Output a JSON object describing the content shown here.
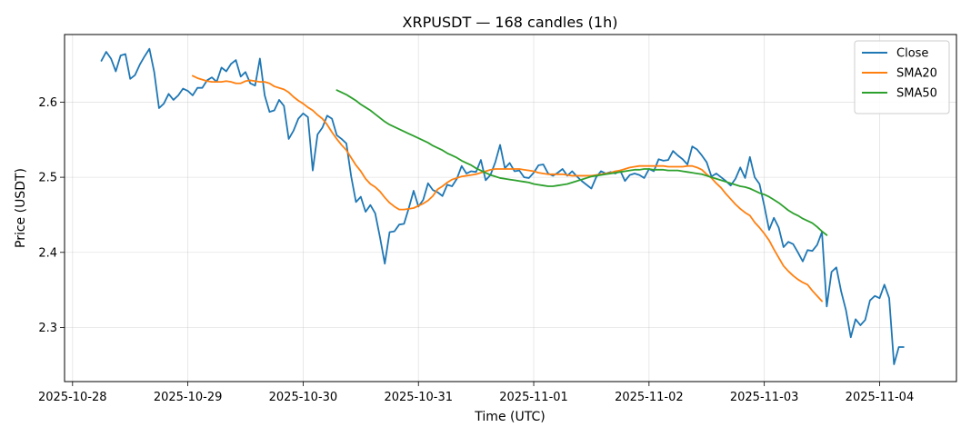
{
  "chart_data": {
    "type": "line",
    "title": "XRPUSDT — 168 candles (1h)",
    "xlabel": "Time (UTC)",
    "ylabel": "Price (USDT)",
    "x_start": "2025-10-28 06:00",
    "x_interval_hours": 1,
    "xlim": [
      "2025-10-27 22:20",
      "2025-11-04 16:00"
    ],
    "ylim": [
      2.228,
      2.69
    ],
    "x_ticks": [
      "2025-10-28",
      "2025-10-29",
      "2025-10-30",
      "2025-10-31",
      "2025-11-01",
      "2025-11-02",
      "2025-11-03",
      "2025-11-04"
    ],
    "y_ticks": [
      2.3,
      2.4,
      2.5,
      2.6
    ],
    "y_tick_labels": [
      "2.3",
      "2.4",
      "2.5",
      "2.6"
    ],
    "grid": true,
    "legend_position": "top-right",
    "series": [
      {
        "name": "Close",
        "color": "#1f77b4",
        "values": [
          2.655,
          2.667,
          2.658,
          2.641,
          2.662,
          2.664,
          2.631,
          2.636,
          2.65,
          2.661,
          2.671,
          2.64,
          2.592,
          2.598,
          2.611,
          2.603,
          2.609,
          2.618,
          2.615,
          2.609,
          2.619,
          2.619,
          2.629,
          2.633,
          2.627,
          2.646,
          2.641,
          2.651,
          2.656,
          2.634,
          2.64,
          2.625,
          2.622,
          2.658,
          2.609,
          2.587,
          2.589,
          2.603,
          2.595,
          2.551,
          2.562,
          2.578,
          2.585,
          2.58,
          2.509,
          2.557,
          2.566,
          2.582,
          2.578,
          2.556,
          2.551,
          2.545,
          2.501,
          2.467,
          2.474,
          2.454,
          2.463,
          2.452,
          2.42,
          2.385,
          2.427,
          2.428,
          2.437,
          2.438,
          2.459,
          2.482,
          2.461,
          2.47,
          2.492,
          2.483,
          2.48,
          2.475,
          2.49,
          2.488,
          2.498,
          2.515,
          2.505,
          2.508,
          2.507,
          2.523,
          2.496,
          2.503,
          2.52,
          2.543,
          2.512,
          2.519,
          2.508,
          2.509,
          2.5,
          2.499,
          2.506,
          2.516,
          2.517,
          2.505,
          2.502,
          2.506,
          2.511,
          2.502,
          2.508,
          2.501,
          2.495,
          2.49,
          2.485,
          2.5,
          2.508,
          2.505,
          2.507,
          2.505,
          2.509,
          2.495,
          2.503,
          2.505,
          2.503,
          2.499,
          2.511,
          2.508,
          2.524,
          2.522,
          2.523,
          2.535,
          2.529,
          2.524,
          2.517,
          2.541,
          2.537,
          2.529,
          2.52,
          2.501,
          2.505,
          2.5,
          2.495,
          2.489,
          2.498,
          2.513,
          2.499,
          2.527,
          2.5,
          2.491,
          2.462,
          2.43,
          2.446,
          2.433,
          2.407,
          2.414,
          2.411,
          2.4,
          2.388,
          2.403,
          2.402,
          2.41,
          2.427,
          2.328,
          2.374,
          2.38,
          2.348,
          2.323,
          2.287,
          2.311,
          2.303,
          2.31,
          2.336,
          2.342,
          2.339,
          2.357,
          2.339,
          2.251,
          2.274,
          2.274
        ]
      },
      {
        "name": "SMA20",
        "color": "#ff7f0e",
        "start_index": 19,
        "values": [
          2.635,
          2.632,
          2.63,
          2.628,
          2.627,
          2.627,
          2.627,
          2.628,
          2.627,
          2.625,
          2.625,
          2.628,
          2.629,
          2.628,
          2.627,
          2.627,
          2.625,
          2.621,
          2.619,
          2.617,
          2.613,
          2.607,
          2.602,
          2.598,
          2.593,
          2.589,
          2.583,
          2.578,
          2.57,
          2.56,
          2.551,
          2.543,
          2.536,
          2.526,
          2.516,
          2.508,
          2.498,
          2.491,
          2.487,
          2.481,
          2.473,
          2.466,
          2.461,
          2.457,
          2.457,
          2.458,
          2.459,
          2.462,
          2.465,
          2.469,
          2.475,
          2.484,
          2.488,
          2.493,
          2.497,
          2.499,
          2.501,
          2.502,
          2.503,
          2.504,
          2.506,
          2.508,
          2.51,
          2.511,
          2.511,
          2.511,
          2.511,
          2.511,
          2.511,
          2.51,
          2.509,
          2.508,
          2.506,
          2.505,
          2.504,
          2.504,
          2.504,
          2.504,
          2.503,
          2.502,
          2.502,
          2.502,
          2.502,
          2.502,
          2.503,
          2.504,
          2.505,
          2.506,
          2.508,
          2.509,
          2.511,
          2.513,
          2.514,
          2.515,
          2.515,
          2.515,
          2.515,
          2.515,
          2.515,
          2.514,
          2.514,
          2.514,
          2.514,
          2.515,
          2.515,
          2.513,
          2.51,
          2.504,
          2.499,
          2.492,
          2.486,
          2.478,
          2.471,
          2.464,
          2.458,
          2.453,
          2.449,
          2.44,
          2.433,
          2.425,
          2.416,
          2.404,
          2.393,
          2.382,
          2.375,
          2.369,
          2.364,
          2.36,
          2.357,
          2.349,
          2.342,
          2.335
        ]
      },
      {
        "name": "SMA50",
        "color": "#2ca02c",
        "start_index": 49,
        "values": [
          2.616,
          2.613,
          2.61,
          2.606,
          2.602,
          2.597,
          2.593,
          2.589,
          2.584,
          2.579,
          2.574,
          2.57,
          2.567,
          2.564,
          2.561,
          2.558,
          2.555,
          2.552,
          2.549,
          2.546,
          2.542,
          2.539,
          2.536,
          2.532,
          2.529,
          2.526,
          2.522,
          2.519,
          2.516,
          2.512,
          2.509,
          2.506,
          2.503,
          2.501,
          2.499,
          2.498,
          2.497,
          2.496,
          2.495,
          2.494,
          2.493,
          2.491,
          2.49,
          2.489,
          2.488,
          2.488,
          2.489,
          2.49,
          2.491,
          2.493,
          2.495,
          2.497,
          2.499,
          2.501,
          2.502,
          2.503,
          2.504,
          2.505,
          2.506,
          2.507,
          2.508,
          2.509,
          2.51,
          2.51,
          2.511,
          2.511,
          2.51,
          2.51,
          2.51,
          2.509,
          2.509,
          2.509,
          2.508,
          2.507,
          2.506,
          2.505,
          2.504,
          2.502,
          2.5,
          2.498,
          2.496,
          2.494,
          2.492,
          2.49,
          2.488,
          2.487,
          2.485,
          2.482,
          2.479,
          2.477,
          2.474,
          2.47,
          2.466,
          2.461,
          2.456,
          2.452,
          2.449,
          2.445,
          2.442,
          2.439,
          2.434,
          2.428,
          2.423
        ]
      }
    ]
  }
}
